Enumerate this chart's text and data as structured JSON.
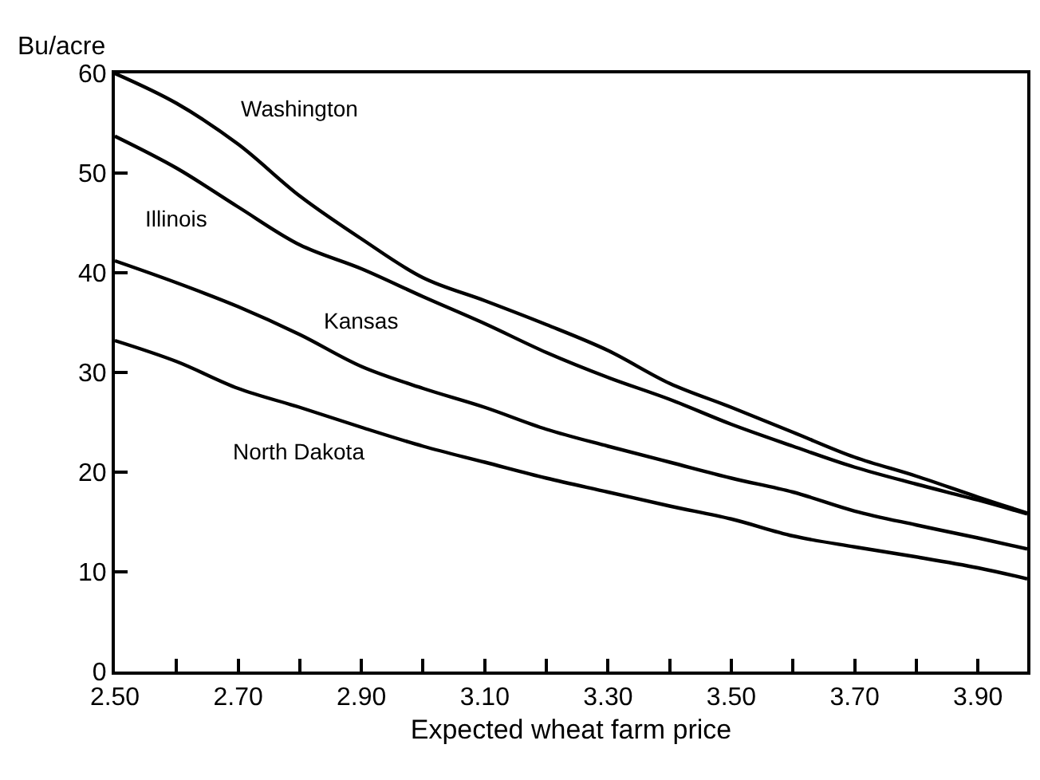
{
  "chart_data": {
    "type": "line",
    "xlabel": "Expected wheat farm price",
    "ylabel": "Bu/acre",
    "x": [
      2.5,
      2.6,
      2.7,
      2.8,
      2.9,
      3.0,
      3.1,
      3.2,
      3.3,
      3.4,
      3.5,
      3.6,
      3.7,
      3.8,
      3.9,
      3.98
    ],
    "series": [
      {
        "name": "Washington",
        "color": "#000000",
        "values": [
          60,
          57,
          52.9,
          47.7,
          43.4,
          39.5,
          37.2,
          34.8,
          32.2,
          28.9,
          26.5,
          24.0,
          21.5,
          19.6,
          17.5,
          15.9
        ]
      },
      {
        "name": "Illinois",
        "color": "#000000",
        "values": [
          53.7,
          50.5,
          46.6,
          42.8,
          40.4,
          37.6,
          34.9,
          32.0,
          29.5,
          27.3,
          24.8,
          22.6,
          20.5,
          18.8,
          17.2,
          15.8
        ]
      },
      {
        "name": "Kansas",
        "color": "#000000",
        "values": [
          41.2,
          39.0,
          36.6,
          33.8,
          30.6,
          28.4,
          26.5,
          24.3,
          22.6,
          21.0,
          19.4,
          18.0,
          16.1,
          14.7,
          13.4,
          12.3
        ]
      },
      {
        "name": "North Dakota",
        "color": "#000000",
        "values": [
          33.2,
          31.1,
          28.4,
          26.5,
          24.5,
          22.6,
          21.0,
          19.4,
          18.0,
          16.6,
          15.3,
          13.6,
          12.5,
          11.5,
          10.4,
          9.3
        ]
      }
    ],
    "xlim": [
      2.5,
      3.98
    ],
    "ylim": [
      0,
      60
    ],
    "xticks": [
      {
        "value": 2.5,
        "label": "2.50"
      },
      {
        "value": 2.6,
        "label": null
      },
      {
        "value": 2.7,
        "label": "2.70"
      },
      {
        "value": 2.8,
        "label": null
      },
      {
        "value": 2.9,
        "label": "2.90"
      },
      {
        "value": 3.0,
        "label": null
      },
      {
        "value": 3.1,
        "label": "3.10"
      },
      {
        "value": 3.2,
        "label": null
      },
      {
        "value": 3.3,
        "label": "3.30"
      },
      {
        "value": 3.4,
        "label": null
      },
      {
        "value": 3.5,
        "label": "3.50"
      },
      {
        "value": 3.6,
        "label": null
      },
      {
        "value": 3.7,
        "label": "3.70"
      },
      {
        "value": 3.8,
        "label": null
      },
      {
        "value": 3.9,
        "label": "3.90"
      }
    ],
    "yticks": [
      0,
      10,
      20,
      30,
      40,
      50,
      60
    ],
    "legend": false,
    "marker": "none",
    "line_style": "solid"
  }
}
